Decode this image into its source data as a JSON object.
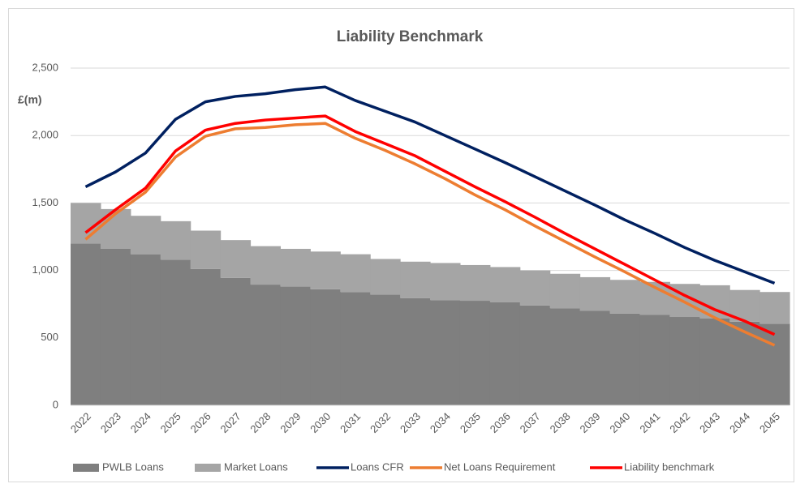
{
  "chart_data": {
    "type": "combo",
    "title": "Liability Benchmark",
    "y_label": "£(m)",
    "categories": [
      "2022",
      "2023",
      "2024",
      "2025",
      "2026",
      "2027",
      "2028",
      "2029",
      "2030",
      "2031",
      "2032",
      "2033",
      "2034",
      "2035",
      "2036",
      "2037",
      "2038",
      "2039",
      "2040",
      "2041",
      "2042",
      "2043",
      "2044",
      "2045"
    ],
    "stacked": true,
    "grid": true,
    "legend": "bottom",
    "ylim": [
      0,
      2500
    ],
    "yticks": [
      0,
      500,
      {
        "value": 1000,
        "label": "1,000"
      },
      {
        "value": 1500,
        "label": "1,500"
      },
      {
        "value": 2000,
        "label": "2,000"
      },
      {
        "value": 2500,
        "label": "2,500"
      }
    ],
    "series": [
      {
        "name": "PWLB Loans",
        "type": "area",
        "color": "#7f7f7f",
        "values": [
          1200,
          1160,
          1120,
          1080,
          1010,
          945,
          895,
          880,
          860,
          840,
          820,
          795,
          780,
          775,
          765,
          740,
          720,
          700,
          680,
          670,
          655,
          645,
          620,
          605
        ]
      },
      {
        "name": "Market Loans",
        "type": "area",
        "color": "#a5a5a5",
        "values": [
          300,
          295,
          285,
          285,
          285,
          280,
          285,
          280,
          280,
          280,
          265,
          270,
          275,
          265,
          260,
          260,
          255,
          250,
          250,
          245,
          245,
          245,
          235,
          235
        ]
      },
      {
        "name": "Loans CFR",
        "type": "line",
        "color": "#002060",
        "values": [
          1620,
          1730,
          1870,
          2120,
          2250,
          2290,
          2310,
          2340,
          2360,
          2260,
          2180,
          2100,
          2000,
          1900,
          1800,
          1695,
          1590,
          1485,
          1375,
          1275,
          1170,
          1075,
          990,
          905
        ]
      },
      {
        "name": "Net Loans Requirement",
        "type": "line",
        "color": "#ed7d31",
        "values": [
          1230,
          1420,
          1580,
          1840,
          1995,
          2050,
          2060,
          2080,
          2090,
          1980,
          1890,
          1790,
          1680,
          1560,
          1450,
          1330,
          1215,
          1100,
          990,
          875,
          765,
          650,
          545,
          445
        ]
      },
      {
        "name": "Liability benchmark",
        "type": "line",
        "color": "#ff0000",
        "values": [
          1280,
          1450,
          1610,
          1885,
          2040,
          2090,
          2115,
          2130,
          2145,
          2030,
          1940,
          1850,
          1735,
          1620,
          1510,
          1395,
          1275,
          1160,
          1045,
          930,
          815,
          710,
          625,
          525
        ]
      }
    ]
  }
}
